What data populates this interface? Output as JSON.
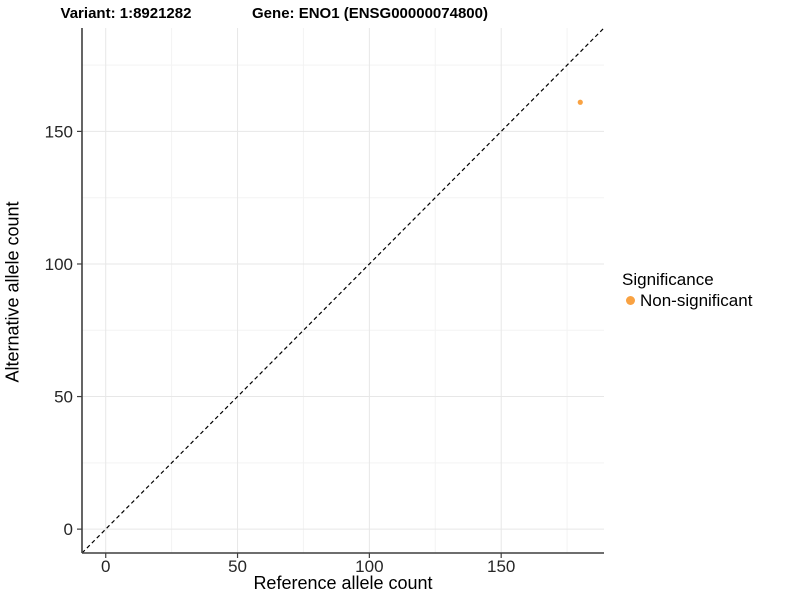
{
  "chart_data": {
    "type": "scatter",
    "title_left": "Variant: 1:8921282",
    "title_right": "Gene: ENO1 (ENSG00000074800)",
    "xlabel": "Reference allele count",
    "ylabel": "Alternative allele count",
    "xlim": [
      -9,
      189
    ],
    "ylim": [
      -9,
      189
    ],
    "x_major_ticks": [
      0,
      50,
      100,
      150
    ],
    "x_minor_ticks": [
      25,
      75,
      125,
      175
    ],
    "y_major_ticks": [
      0,
      50,
      100,
      150
    ],
    "y_minor_ticks": [
      25,
      75,
      125,
      175
    ],
    "grid": true,
    "identity_line": {
      "shown": true,
      "style": "dashed",
      "color": "#000000"
    },
    "points": [
      {
        "x": 180,
        "y": 161,
        "series": "Non-significant"
      }
    ],
    "legend": {
      "title": "Significance",
      "position": "right",
      "items": [
        {
          "label": "Non-significant",
          "color": "#F9A242"
        }
      ]
    },
    "colors": {
      "point": "#F9A242",
      "grid_major": "#E7E7E7",
      "grid_minor": "#F3F3F3",
      "axis_line": "#3f3f3f",
      "tick_label": "#262626"
    }
  }
}
